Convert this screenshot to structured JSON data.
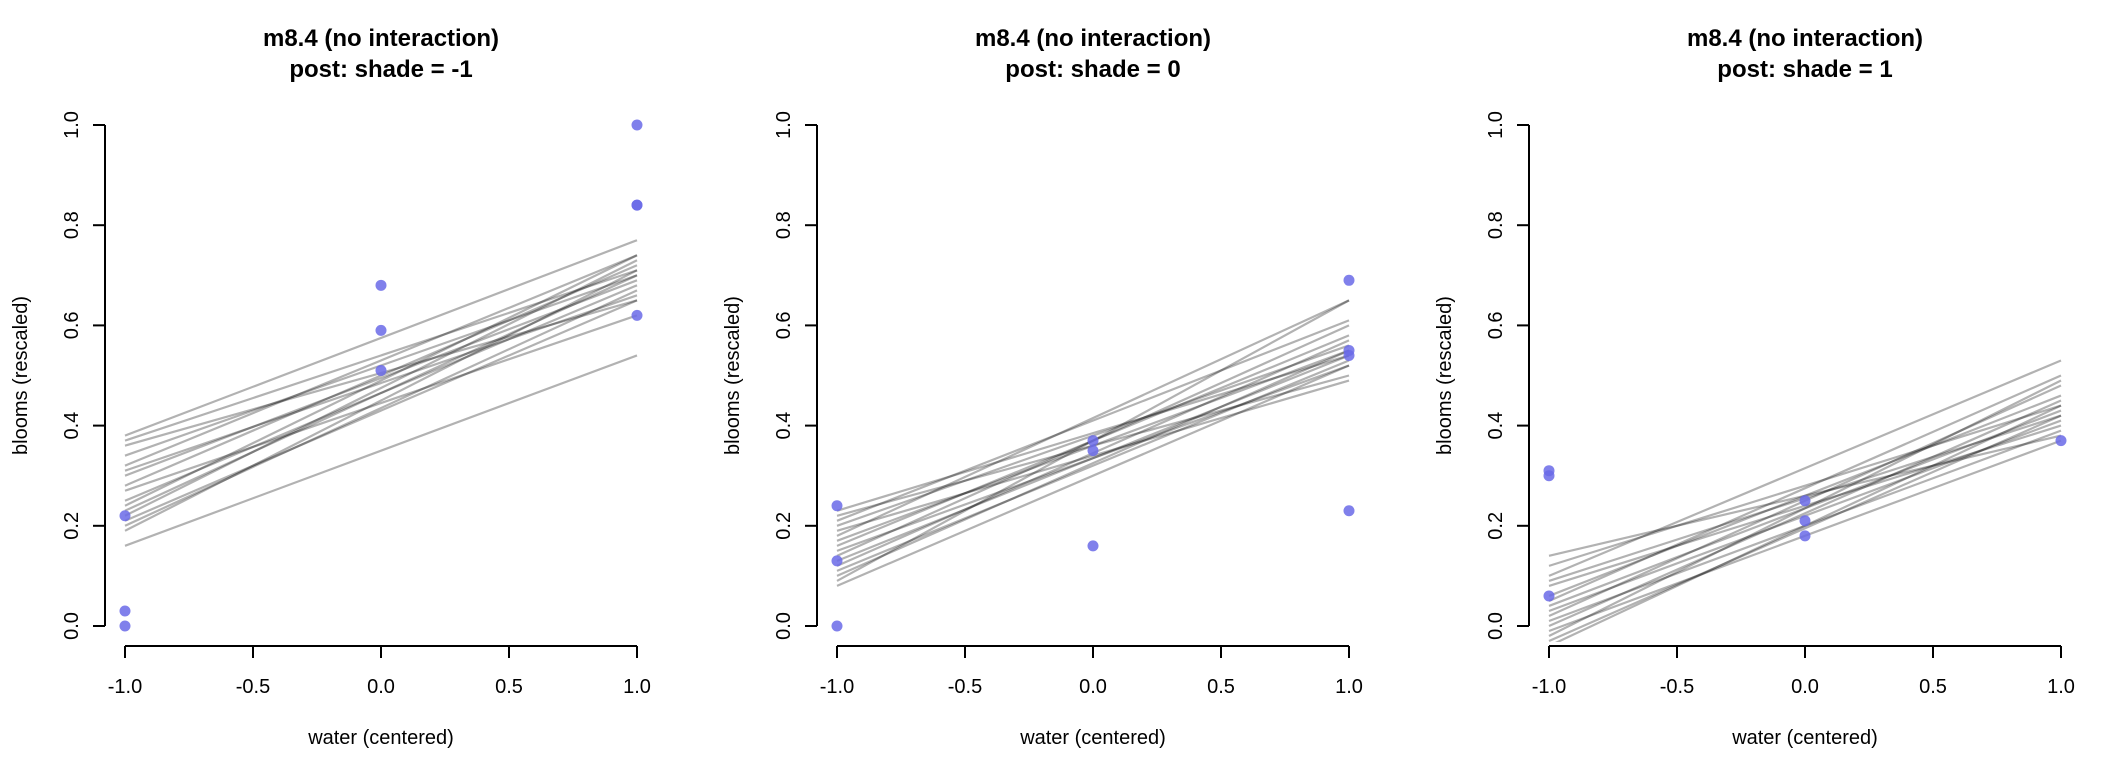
{
  "chart_data": [
    {
      "type": "line",
      "title": "m8.4 (no interaction)",
      "subtitle": "post: shade =  -1",
      "xlabel": "water (centered)",
      "ylabel": "blooms (rescaled)",
      "xlim": [
        -1,
        1
      ],
      "ylim": [
        0,
        1
      ],
      "x_ticks": [
        "-1.0",
        "-0.5",
        "0.0",
        "0.5",
        "1.0"
      ],
      "y_ticks": [
        "0.0",
        "0.2",
        "0.4",
        "0.6",
        "0.8",
        "1.0"
      ],
      "point_color": "#6a6ae8",
      "line_color": "#000000",
      "points": [
        {
          "x": -1,
          "y": 0.22
        },
        {
          "x": -1,
          "y": 0.03
        },
        {
          "x": -1,
          "y": 0.0
        },
        {
          "x": 0,
          "y": 0.68
        },
        {
          "x": 0,
          "y": 0.59
        },
        {
          "x": 0,
          "y": 0.51
        },
        {
          "x": 1,
          "y": 1.0
        },
        {
          "x": 1,
          "y": 0.84
        },
        {
          "x": 1,
          "y": 0.84
        },
        {
          "x": 1,
          "y": 0.62
        }
      ],
      "lines": [
        {
          "y_at_-1": 0.38,
          "y_at_1": 0.77
        },
        {
          "y_at_-1": 0.37,
          "y_at_1": 0.71
        },
        {
          "y_at_-1": 0.36,
          "y_at_1": 0.65
        },
        {
          "y_at_-1": 0.34,
          "y_at_1": 0.7
        },
        {
          "y_at_-1": 0.32,
          "y_at_1": 0.74
        },
        {
          "y_at_-1": 0.31,
          "y_at_1": 0.66
        },
        {
          "y_at_-1": 0.3,
          "y_at_1": 0.69
        },
        {
          "y_at_-1": 0.28,
          "y_at_1": 0.72
        },
        {
          "y_at_-1": 0.27,
          "y_at_1": 0.62
        },
        {
          "y_at_-1": 0.25,
          "y_at_1": 0.68
        },
        {
          "y_at_-1": 0.24,
          "y_at_1": 0.74
        },
        {
          "y_at_-1": 0.23,
          "y_at_1": 0.7
        },
        {
          "y_at_-1": 0.22,
          "y_at_1": 0.73
        },
        {
          "y_at_-1": 0.21,
          "y_at_1": 0.65
        },
        {
          "y_at_-1": 0.2,
          "y_at_1": 0.67
        },
        {
          "y_at_-1": 0.19,
          "y_at_1": 0.71
        },
        {
          "y_at_-1": 0.16,
          "y_at_1": 0.54
        }
      ]
    },
    {
      "type": "line",
      "title": "m8.4 (no interaction)",
      "subtitle": "post: shade =  0",
      "xlabel": "water (centered)",
      "ylabel": "blooms (rescaled)",
      "xlim": [
        -1,
        1
      ],
      "ylim": [
        0,
        1
      ],
      "x_ticks": [
        "-1.0",
        "-0.5",
        "0.0",
        "0.5",
        "1.0"
      ],
      "y_ticks": [
        "0.0",
        "0.2",
        "0.4",
        "0.6",
        "0.8",
        "1.0"
      ],
      "point_color": "#6a6ae8",
      "line_color": "#000000",
      "points": [
        {
          "x": -1,
          "y": 0.24
        },
        {
          "x": -1,
          "y": 0.13
        },
        {
          "x": -1,
          "y": 0.0
        },
        {
          "x": 0,
          "y": 0.37
        },
        {
          "x": 0,
          "y": 0.35
        },
        {
          "x": 0,
          "y": 0.16
        },
        {
          "x": 1,
          "y": 0.69
        },
        {
          "x": 1,
          "y": 0.55
        },
        {
          "x": 1,
          "y": 0.54
        },
        {
          "x": 1,
          "y": 0.23
        }
      ],
      "lines": [
        {
          "y_at_-1": 0.23,
          "y_at_1": 0.54
        },
        {
          "y_at_-1": 0.22,
          "y_at_1": 0.5
        },
        {
          "y_at_-1": 0.21,
          "y_at_1": 0.61
        },
        {
          "y_at_-1": 0.2,
          "y_at_1": 0.56
        },
        {
          "y_at_-1": 0.19,
          "y_at_1": 0.49
        },
        {
          "y_at_-1": 0.18,
          "y_at_1": 0.65
        },
        {
          "y_at_-1": 0.17,
          "y_at_1": 0.55
        },
        {
          "y_at_-1": 0.16,
          "y_at_1": 0.58
        },
        {
          "y_at_-1": 0.15,
          "y_at_1": 0.52
        },
        {
          "y_at_-1": 0.14,
          "y_at_1": 0.6
        },
        {
          "y_at_-1": 0.13,
          "y_at_1": 0.54
        },
        {
          "y_at_-1": 0.12,
          "y_at_1": 0.57
        },
        {
          "y_at_-1": 0.11,
          "y_at_1": 0.53
        },
        {
          "y_at_-1": 0.1,
          "y_at_1": 0.55
        },
        {
          "y_at_-1": 0.09,
          "y_at_1": 0.65
        },
        {
          "y_at_-1": 0.08,
          "y_at_1": 0.52
        }
      ]
    },
    {
      "type": "line",
      "title": "m8.4 (no interaction)",
      "subtitle": "post: shade =  1",
      "xlabel": "water (centered)",
      "ylabel": "blooms (rescaled)",
      "xlim": [
        -1,
        1
      ],
      "ylim": [
        0,
        1
      ],
      "x_ticks": [
        "-1.0",
        "-0.5",
        "0.0",
        "0.5",
        "1.0"
      ],
      "y_ticks": [
        "0.0",
        "0.2",
        "0.4",
        "0.6",
        "0.8",
        "1.0"
      ],
      "point_color": "#6a6ae8",
      "line_color": "#000000",
      "points": [
        {
          "x": -1,
          "y": 0.31
        },
        {
          "x": -1,
          "y": 0.3
        },
        {
          "x": -1,
          "y": 0.06
        },
        {
          "x": 0,
          "y": 0.25
        },
        {
          "x": 0,
          "y": 0.21
        },
        {
          "x": 0,
          "y": 0.18
        },
        {
          "x": 1,
          "y": 0.37
        }
      ],
      "lines": [
        {
          "y_at_-1": 0.14,
          "y_at_1": 0.38
        },
        {
          "y_at_-1": 0.12,
          "y_at_1": 0.44
        },
        {
          "y_at_-1": 0.1,
          "y_at_1": 0.53
        },
        {
          "y_at_-1": 0.09,
          "y_at_1": 0.42
        },
        {
          "y_at_-1": 0.08,
          "y_at_1": 0.4
        },
        {
          "y_at_-1": 0.06,
          "y_at_1": 0.46
        },
        {
          "y_at_-1": 0.05,
          "y_at_1": 0.5
        },
        {
          "y_at_-1": 0.04,
          "y_at_1": 0.43
        },
        {
          "y_at_-1": 0.03,
          "y_at_1": 0.41
        },
        {
          "y_at_-1": 0.02,
          "y_at_1": 0.48
        },
        {
          "y_at_-1": 0.01,
          "y_at_1": 0.39
        },
        {
          "y_at_-1": 0.0,
          "y_at_1": 0.45
        },
        {
          "y_at_-1": -0.01,
          "y_at_1": 0.37
        },
        {
          "y_at_-1": -0.02,
          "y_at_1": 0.49
        },
        {
          "y_at_-1": -0.03,
          "y_at_1": 0.42
        },
        {
          "y_at_-1": -0.04,
          "y_at_1": 0.44
        }
      ]
    }
  ]
}
